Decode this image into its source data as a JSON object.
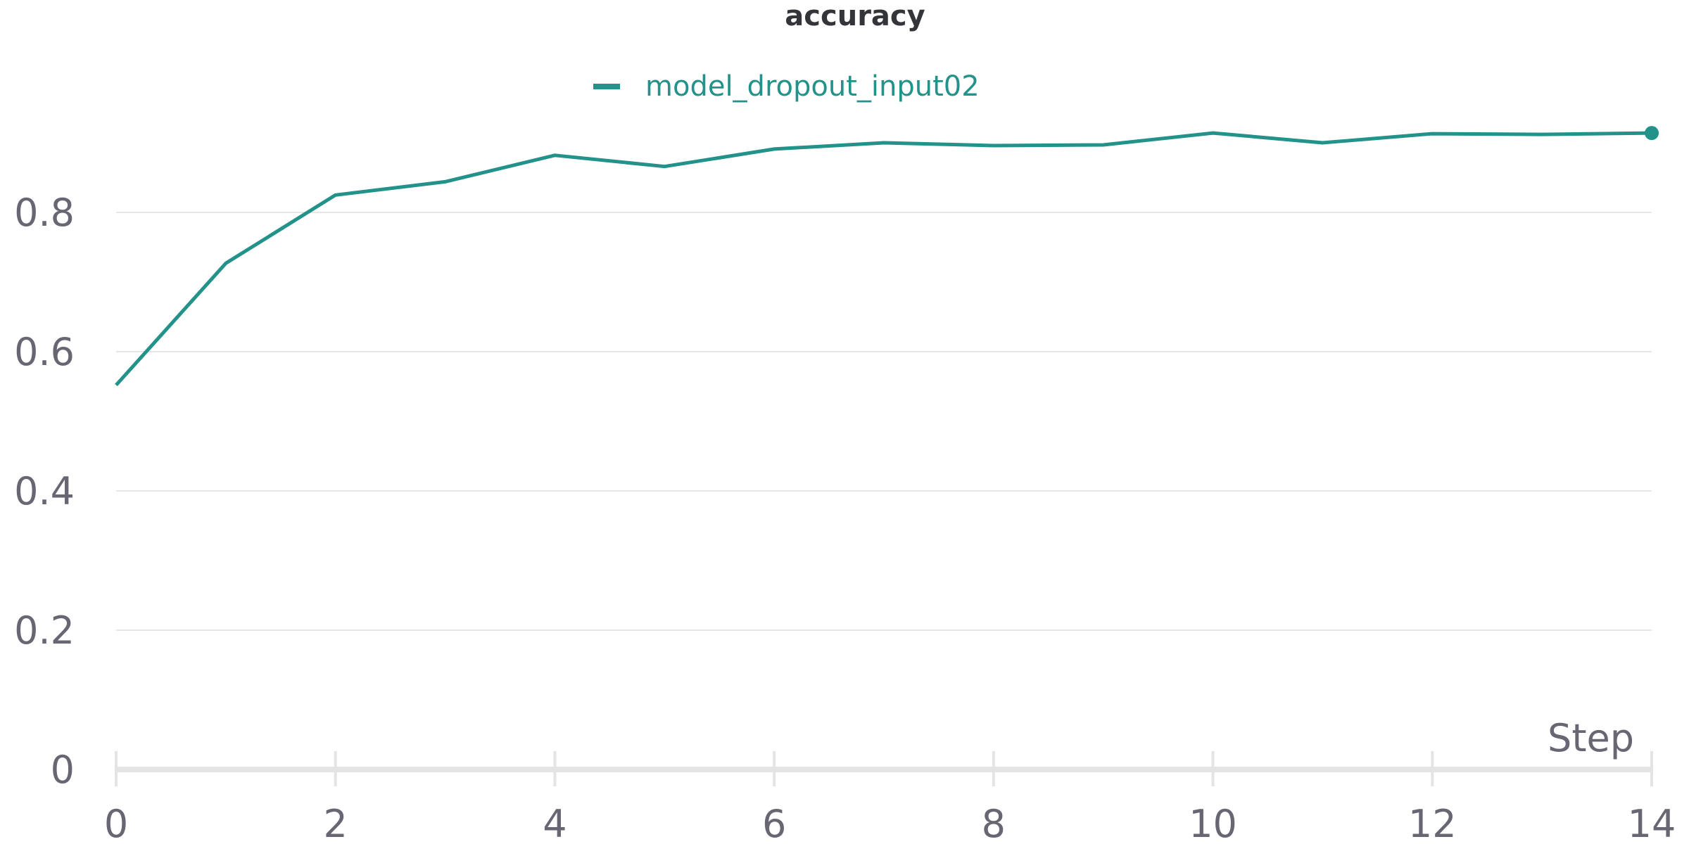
{
  "chart_data": {
    "type": "line",
    "title": "accuracy",
    "xlabel": "Step",
    "ylabel": "",
    "x": [
      0,
      1,
      2,
      3,
      4,
      5,
      6,
      7,
      8,
      9,
      10,
      11,
      12,
      13,
      14
    ],
    "xlim": [
      0,
      14
    ],
    "ylim": [
      0,
      0.95
    ],
    "x_ticks": [
      "0",
      "2",
      "4",
      "6",
      "8",
      "10",
      "12",
      "14"
    ],
    "y_ticks": [
      "0",
      "0.2",
      "0.4",
      "0.6",
      "0.8"
    ],
    "grid": "horizontal",
    "legend_position": "top-center",
    "series": [
      {
        "name": "model_dropout_input02",
        "color": "#22928a",
        "values": [
          0.552,
          0.727,
          0.825,
          0.844,
          0.882,
          0.866,
          0.891,
          0.9,
          0.896,
          0.897,
          0.914,
          0.9,
          0.913,
          0.912,
          0.914
        ]
      }
    ]
  }
}
